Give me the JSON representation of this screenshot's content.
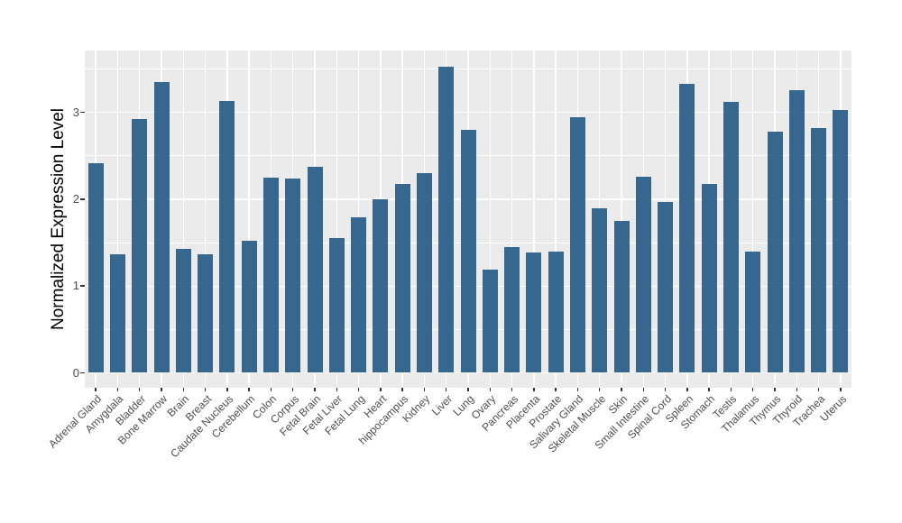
{
  "chart_data": {
    "type": "bar",
    "title": "",
    "xlabel": "",
    "ylabel": "Normalized Expression Level",
    "categories": [
      "Adrenal Gland",
      "Amygdala",
      "Bladder",
      "Bone Marrow",
      "Brain",
      "Breast",
      "Caudate Nucleus",
      "Cerebellum",
      "Colon",
      "Corpus",
      "Fetal Brain",
      "Fetal Liver",
      "Fetal Lung",
      "Heart",
      "hippocampus",
      "Kidney",
      "Liver",
      "Lung",
      "Ovary",
      "Pancreas",
      "Placenta",
      "Prostate",
      "Salivary Gland",
      "Skeletal Muscle",
      "Skin",
      "Small Intestine",
      "Spinal Cord",
      "Spleen",
      "Stomach",
      "Testis",
      "Thalamus",
      "Thymus",
      "Thyroid",
      "Trachea",
      "Uterus"
    ],
    "values": [
      2.41,
      1.37,
      2.92,
      3.35,
      1.43,
      1.37,
      3.13,
      1.52,
      2.25,
      2.24,
      2.37,
      1.55,
      1.79,
      2.0,
      2.18,
      2.3,
      3.53,
      2.8,
      1.19,
      1.45,
      1.39,
      1.4,
      2.94,
      1.9,
      1.75,
      2.26,
      1.97,
      3.33,
      2.18,
      3.12,
      1.4,
      2.78,
      3.26,
      2.82,
      3.03
    ],
    "yticks": [
      0,
      1,
      2,
      3
    ],
    "yticks_minor": [
      0.5,
      1.5,
      2.5,
      3.5
    ],
    "ylim": [
      -0.18,
      3.73
    ],
    "grid": "on",
    "legend": "none",
    "colors": {
      "bar": "#36678F",
      "panel_background": "#EBEBEB",
      "gridline": "#FFFFFF",
      "axis_text": "#4D4D4D",
      "axis_title": "#000000",
      "tick_mark": "#333333"
    }
  }
}
